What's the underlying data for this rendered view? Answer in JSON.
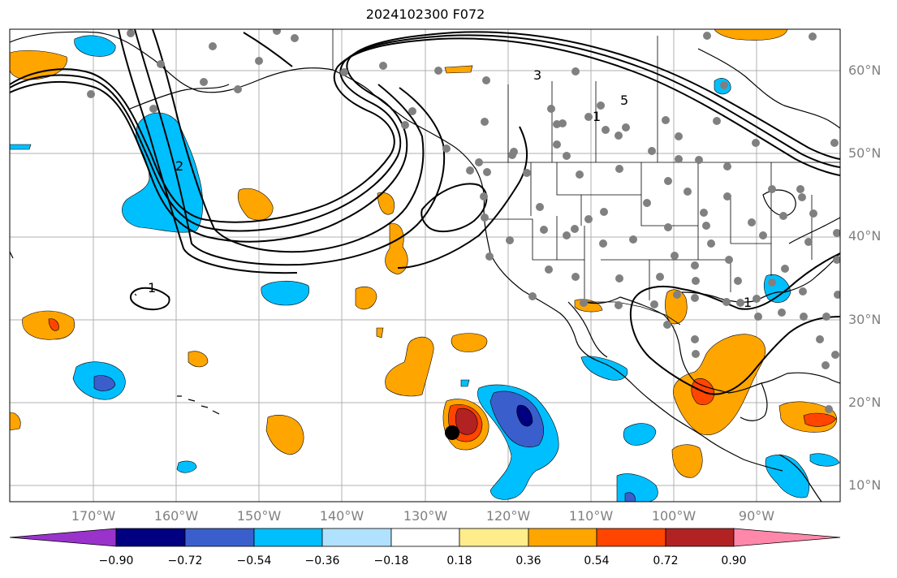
{
  "title": "2024102300 F072",
  "latitude_labels": [
    "60°N",
    "50°N",
    "40°N",
    "30°N",
    "20°N",
    "10°N"
  ],
  "longitude_labels": [
    "170°W",
    "160°W",
    "150°W",
    "140°W",
    "130°W",
    "120°W",
    "110°W",
    "100°W",
    "90°W"
  ],
  "contour_labels": [
    "3",
    "5",
    "1",
    "2",
    "1",
    "1"
  ],
  "colorbar": {
    "tick_labels": [
      "−0.90",
      "−0.72",
      "−0.54",
      "−0.36",
      "−0.18",
      "0.18",
      "0.36",
      "0.54",
      "0.72",
      "0.90"
    ],
    "colors": [
      "#9933cc",
      "#000080",
      "#3a5fcd",
      "#00bfff",
      "#b0e2ff",
      "#ffffff",
      "#ffec8b",
      "#ffa500",
      "#ff4500",
      "#b22222",
      "#ff88aa"
    ]
  },
  "colors": {
    "grid": "#b0b0b0",
    "station": "#808080",
    "coast": "#000000",
    "contour": "#000000",
    "storm_marker": "#000000"
  }
}
